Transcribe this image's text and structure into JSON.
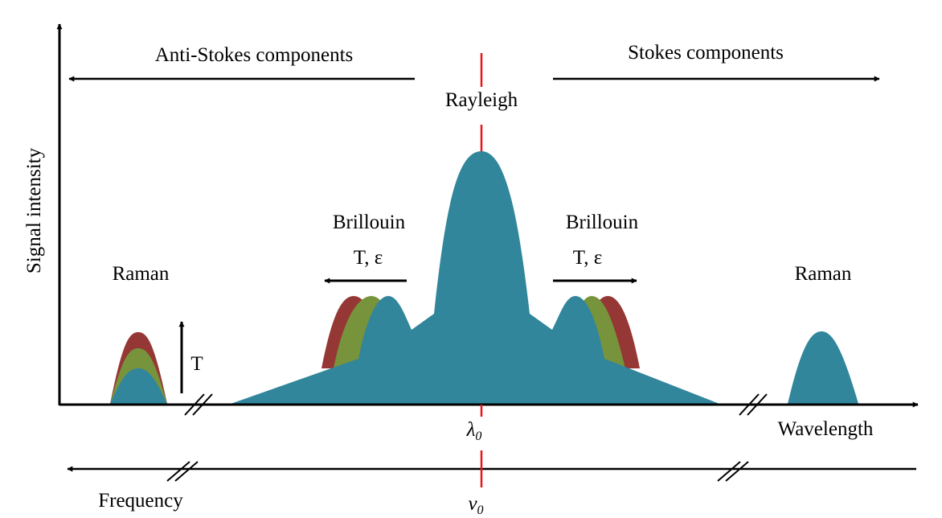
{
  "labels": {
    "anti_stokes": "Anti-Stokes components",
    "stokes": "Stokes components",
    "rayleigh": "Rayleigh",
    "y_axis": "Signal intensity",
    "brillouin_left": "Brillouin",
    "brillouin_right": "Brillouin",
    "brillouin_shift_left": "T, ε",
    "brillouin_shift_right": "T, ε",
    "raman_left": "Raman",
    "raman_right": "Raman",
    "raman_temp": "T",
    "lambda0": "λ",
    "lambda0_sub": "0",
    "nu0": "ν",
    "nu0_sub": "0",
    "wavelength": "Wavelength",
    "frequency": "Frequency"
  },
  "colors": {
    "peak_teal": "#31869b",
    "peak_green": "#77933c",
    "peak_red": "#953735",
    "center_line": "#e8151b",
    "axis": "#000000"
  }
}
